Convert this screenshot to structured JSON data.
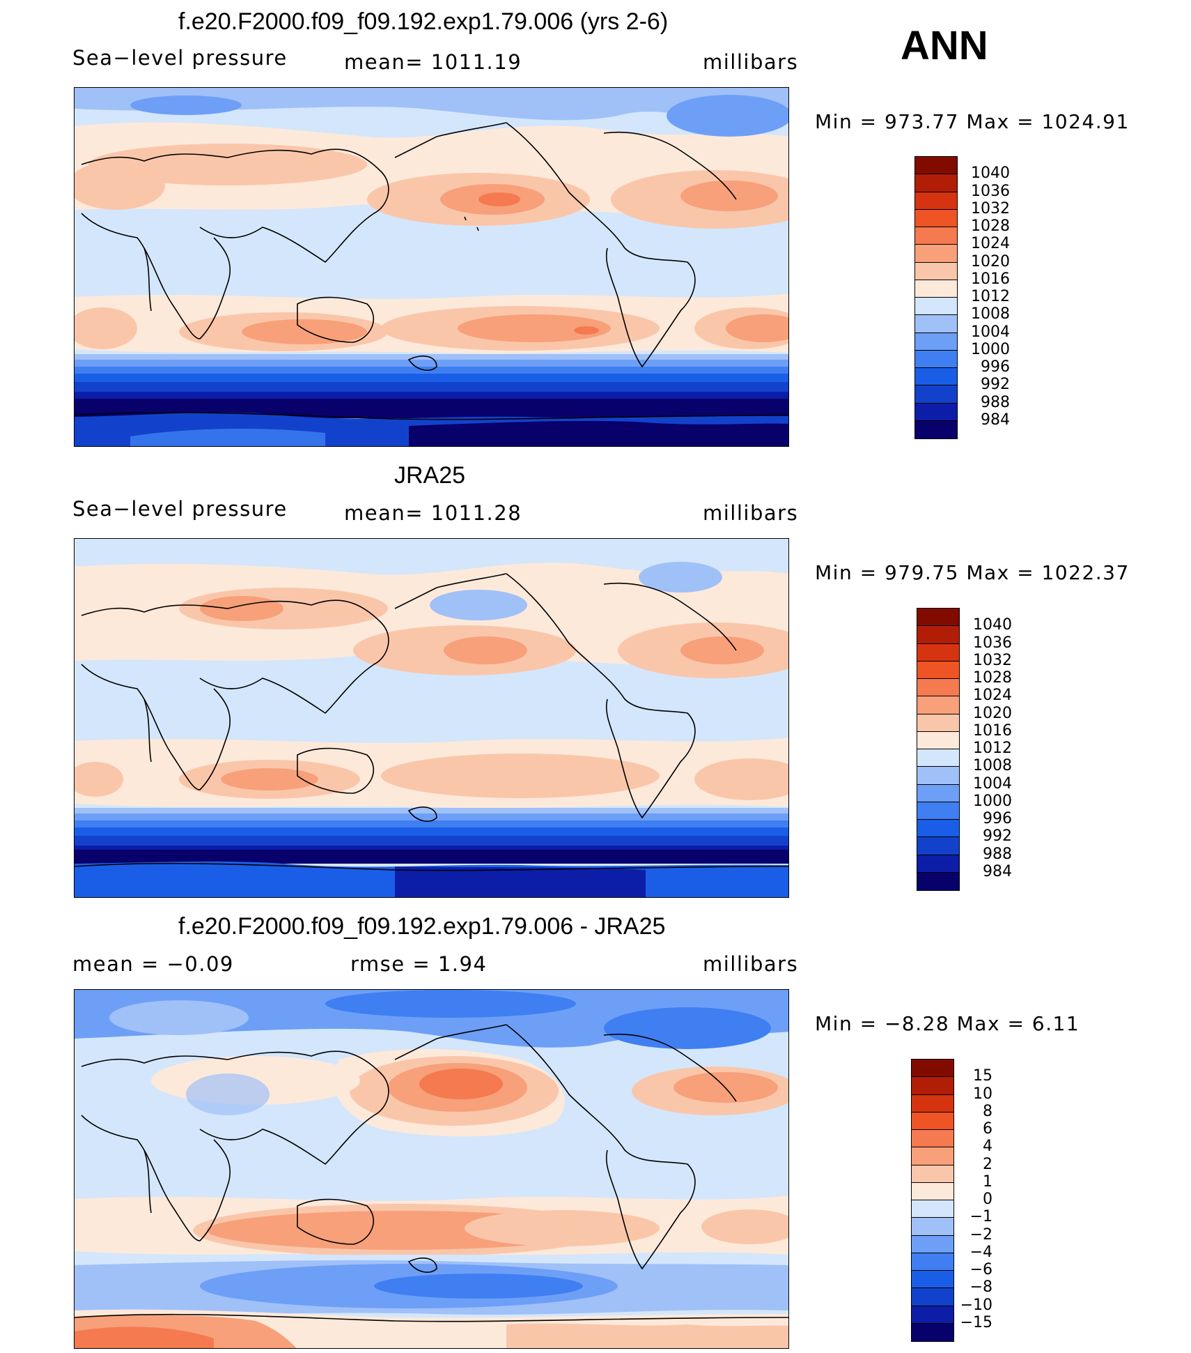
{
  "season": "ANN",
  "colors": {
    "abs_scale": [
      "#08006b",
      "#0c1ea8",
      "#1242cc",
      "#1a5ee8",
      "#3f7ff2",
      "#6e9ff7",
      "#a0c0f8",
      "#d4e6fb",
      "#fde9da",
      "#fac6aa",
      "#f7a07a",
      "#f57a50",
      "#ef5424",
      "#d63410",
      "#b21d06",
      "#820b00"
    ],
    "diff_scale": [
      "#08006b",
      "#0c1ea8",
      "#1242cc",
      "#1a5ee8",
      "#3f7ff2",
      "#6e9ff7",
      "#a0c0f8",
      "#d4e6fb",
      "#fde9da",
      "#fac6aa",
      "#f7a07a",
      "#f57a50",
      "#ef5424",
      "#d63410",
      "#b21d06",
      "#820b00"
    ]
  },
  "panels": [
    {
      "title": "f.e20.F2000.f09_f09.192.exp1.79.006 (yrs 2-6)",
      "left": "Sea−level  pressure",
      "center": "mean=  1011.19",
      "right": "millibars",
      "minmax": "Min  =  973.77  Max  =  1024.91",
      "levels": [
        "1040",
        "1036",
        "1032",
        "1028",
        "1024",
        "1020",
        "1016",
        "1012",
        "1008",
        "1004",
        "1000",
        "996",
        "992",
        "988",
        "984"
      ]
    },
    {
      "title": "JRA25",
      "left": "Sea−level  pressure",
      "center": "mean=  1011.28",
      "right": "millibars",
      "minmax": "Min  =  979.75  Max  =  1022.37",
      "levels": [
        "1040",
        "1036",
        "1032",
        "1028",
        "1024",
        "1020",
        "1016",
        "1012",
        "1008",
        "1004",
        "1000",
        "996",
        "992",
        "988",
        "984"
      ]
    },
    {
      "title": "f.e20.F2000.f09_f09.192.exp1.79.006 - JRA25",
      "left": "mean  =     −0.09",
      "center": "rmse  =      1.94",
      "right": "millibars",
      "minmax": "Min  =    −8.28  Max  =      6.11",
      "levels": [
        "15",
        "10",
        "8",
        "6",
        "4",
        "2",
        "1",
        "0",
        "−1",
        "−2",
        "−4",
        "−6",
        "−8",
        "−10",
        "−15"
      ]
    }
  ]
}
